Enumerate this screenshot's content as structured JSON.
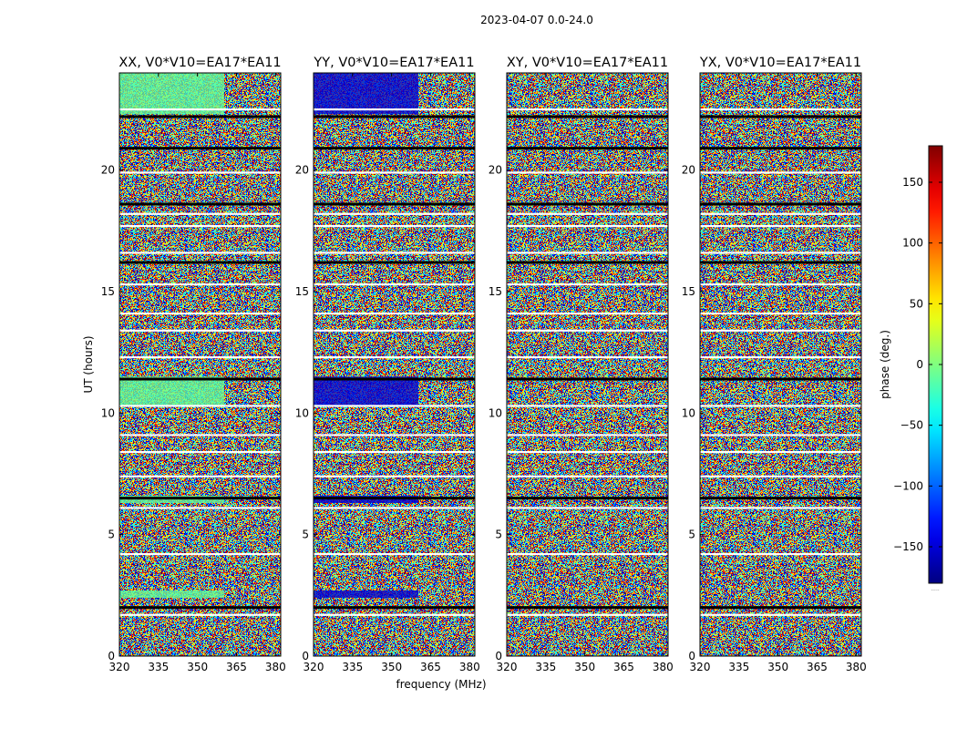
{
  "figure": {
    "suptitle": "2023-04-07 0.0-24.0",
    "xlabel": "frequency (MHz)",
    "ylabel": "UT (hours)",
    "colorbar_label": "phase (deg.)",
    "colorbar_footnote": "....."
  },
  "chart_data": {
    "type": "heatmap",
    "x_range": [
      320,
      382
    ],
    "y_range": [
      0,
      24
    ],
    "x_ticks": [
      "320",
      "335",
      "350",
      "365",
      "380"
    ],
    "y_ticks": [
      "0",
      "5",
      "10",
      "15",
      "20"
    ],
    "panels": [
      {
        "title": "XX, V0*V10=EA17*EA11",
        "coherent_phase_deg": -10
      },
      {
        "title": "YY, V0*V10=EA17*EA11",
        "coherent_phase_deg": -150
      },
      {
        "title": "XY, V0*V10=EA17*EA11",
        "coherent_phase_deg": null
      },
      {
        "title": "YX, V0*V10=EA17*EA11",
        "coherent_phase_deg": null
      }
    ],
    "colorbar": {
      "colormap": "jet",
      "range": [
        -180,
        180
      ],
      "ticks": [
        "150",
        "100",
        "50",
        "0",
        "−50",
        "−100",
        "−150"
      ],
      "tick_values": [
        150,
        100,
        50,
        0,
        -50,
        -100,
        -150
      ]
    }
  }
}
